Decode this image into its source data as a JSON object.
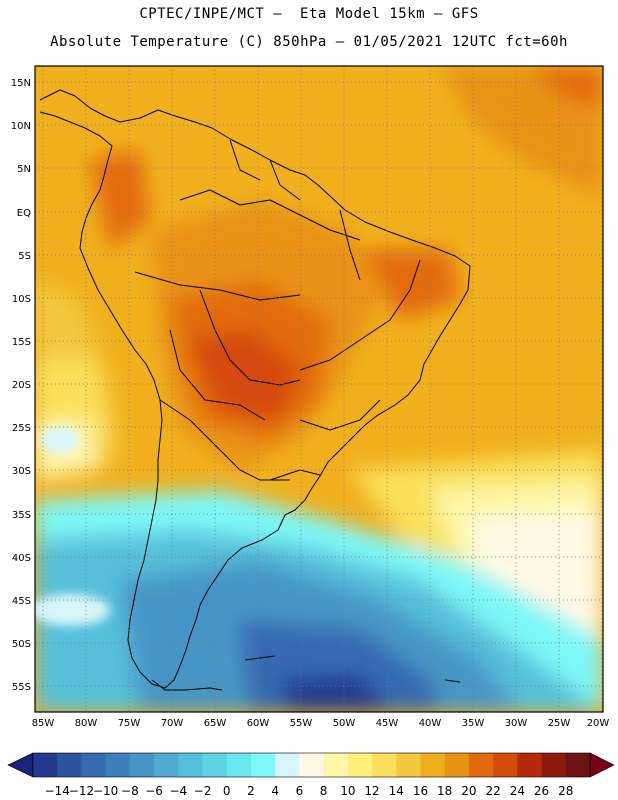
{
  "title": {
    "line1": "CPTEC/INPE/MCT –  Eta Model 15km – GFS",
    "line2": "Absolute Temperature (C) 850hPa – 01/05/2021 12UTC fct=60h"
  },
  "map": {
    "lat_labels": [
      "15N",
      "10N",
      "5N",
      "EQ",
      "5S",
      "10S",
      "15S",
      "20S",
      "25S",
      "30S",
      "35S",
      "40S",
      "45S",
      "50S",
      "55S"
    ],
    "lon_labels": [
      "85W",
      "80W",
      "75W",
      "70W",
      "65W",
      "60W",
      "55W",
      "50W",
      "45W",
      "40W",
      "35W",
      "30W",
      "25W",
      "20W"
    ],
    "gridlines": "dotted"
  },
  "colorbar": {
    "labels": [
      "−14",
      "−12",
      "−10",
      "−8",
      "−6",
      "−4",
      "−2",
      "0",
      "2",
      "4",
      "6",
      "8",
      "10",
      "12",
      "14",
      "16",
      "18",
      "20",
      "22",
      "24",
      "26",
      "28"
    ],
    "low_arrow_color": "#1a237e",
    "high_arrow_color": "#7a001a",
    "colors": [
      "#213a8f",
      "#2b54a1",
      "#3569b0",
      "#3f7fbc",
      "#4795c6",
      "#4fabd0",
      "#57c0da",
      "#5fd3e4",
      "#6ae6ee",
      "#7df7f7",
      "#d7f6fb",
      "#fff8e5",
      "#fff7a8",
      "#fff07a",
      "#fae05a",
      "#f4c83c",
      "#eeae1e",
      "#e99314",
      "#e36a0c",
      "#d44a0a",
      "#b42a0a",
      "#8c1a0a",
      "#6e1214"
    ]
  }
}
